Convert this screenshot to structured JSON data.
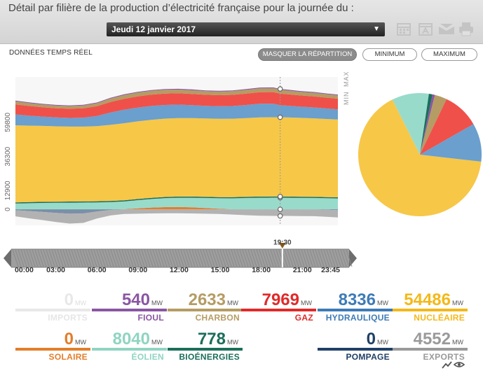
{
  "header": {
    "title": "Détail par filière de la production d’électricité française pour la journée du :",
    "date_value": "Jeudi 12 janvier 2017",
    "icons": [
      "calendar-icon",
      "calendar-day-icon",
      "email-icon",
      "print-icon"
    ]
  },
  "controls": {
    "realtime_label": "DONNÉES TEMPS RÉEL",
    "masquer_label": "MASQUER LA RÉPARTITION",
    "minimum_label": "MINIMUM",
    "maximum_label": "MAXIMUM"
  },
  "chart_data": {
    "type": "area",
    "stacked": true,
    "y_tick_labels": [
      "0",
      "12900",
      "36300",
      "59800"
    ],
    "y_ticks": [
      0,
      12900,
      36300,
      59800
    ],
    "range_labels": [
      "MIN",
      "MAX"
    ],
    "ylim": [
      -11000,
      91000
    ],
    "x": [
      "00:00",
      "01:00",
      "02:00",
      "03:00",
      "04:00",
      "05:00",
      "06:00",
      "07:00",
      "08:00",
      "09:00",
      "10:00",
      "11:00",
      "12:00",
      "13:00",
      "14:00",
      "15:00",
      "16:00",
      "17:00",
      "18:00",
      "19:00",
      "19:30",
      "20:00",
      "21:00",
      "22:00",
      "23:00",
      "23:45"
    ],
    "series": [
      {
        "key": "pompage",
        "color": "#7b8fa8",
        "negative": true,
        "values": [
          600,
          1200,
          1800,
          2500,
          3000,
          2800,
          1500,
          400,
          0,
          0,
          0,
          0,
          0,
          0,
          0,
          0,
          0,
          0,
          0,
          0,
          0,
          0,
          0,
          0,
          300,
          600
        ]
      },
      {
        "key": "exports",
        "color": "#b2b2b2",
        "negative": true,
        "values": [
          4200,
          5000,
          5600,
          6200,
          6800,
          6500,
          4800,
          3800,
          3200,
          3000,
          2800,
          2700,
          2700,
          2800,
          3000,
          3200,
          3600,
          4000,
          4400,
          4500,
          4552,
          4500,
          4600,
          4700,
          4900,
          5000
        ]
      },
      {
        "key": "solaire",
        "color": "#e37d2a",
        "values": [
          0,
          0,
          0,
          0,
          0,
          0,
          0,
          0,
          120,
          700,
          1200,
          1500,
          1600,
          1400,
          900,
          400,
          60,
          0,
          0,
          0,
          0,
          0,
          0,
          0,
          0,
          0
        ]
      },
      {
        "key": "eolien",
        "color": "#99dbcb",
        "values": [
          4000,
          4200,
          4400,
          4500,
          4600,
          4700,
          4800,
          5000,
          5300,
          5600,
          5900,
          6200,
          6400,
          6600,
          6900,
          7200,
          7500,
          7800,
          8000,
          8040,
          8040,
          8000,
          7900,
          7800,
          7600,
          7500
        ]
      },
      {
        "key": "bioenergies",
        "color": "#1b6e5a",
        "values": [
          760,
          760,
          760,
          770,
          770,
          770,
          770,
          775,
          775,
          775,
          778,
          778,
          778,
          778,
          778,
          778,
          778,
          778,
          778,
          778,
          778,
          778,
          778,
          778,
          778,
          778
        ]
      },
      {
        "key": "nucleaire",
        "color": "#f7c748",
        "values": [
          53000,
          52600,
          52200,
          51800,
          51500,
          51400,
          51600,
          52300,
          53000,
          53400,
          53700,
          53900,
          54000,
          54000,
          53900,
          53900,
          54000,
          54200,
          54400,
          54500,
          54486,
          54400,
          54200,
          54000,
          53700,
          53500
        ]
      },
      {
        "key": "hydraulique",
        "color": "#6a9fce",
        "values": [
          7500,
          6900,
          6400,
          6100,
          6000,
          6200,
          7000,
          8500,
          9300,
          9500,
          9500,
          9400,
          9200,
          8900,
          8700,
          8600,
          8700,
          9000,
          9500,
          9300,
          8336,
          8100,
          7700,
          7500,
          7200,
          7000
        ]
      },
      {
        "key": "gaz",
        "color": "#f0504a",
        "values": [
          6900,
          6600,
          6400,
          6300,
          6300,
          6400,
          6700,
          7200,
          7500,
          7700,
          7800,
          7800,
          7800,
          7700,
          7600,
          7600,
          7700,
          7800,
          7900,
          8000,
          7969,
          7900,
          7700,
          7600,
          7400,
          7300
        ]
      },
      {
        "key": "charbon",
        "color": "#b59c64",
        "values": [
          2100,
          2000,
          1900,
          1850,
          1850,
          1900,
          2100,
          2400,
          2550,
          2600,
          2600,
          2600,
          2550,
          2500,
          2450,
          2450,
          2500,
          2550,
          2600,
          2633,
          2633,
          2600,
          2500,
          2450,
          2400,
          2350
        ]
      },
      {
        "key": "fioul",
        "color": "#8a56a3",
        "values": [
          480,
          470,
          460,
          460,
          460,
          460,
          480,
          500,
          520,
          530,
          535,
          535,
          535,
          535,
          530,
          530,
          530,
          535,
          540,
          540,
          540,
          540,
          535,
          530,
          520,
          510
        ]
      }
    ],
    "marker_index": 20
  },
  "timeline": {
    "cursor_label": "19:30",
    "cursor_fraction": 0.8125,
    "ticks": [
      "00:00",
      "03:00",
      "06:00",
      "09:00",
      "12:00",
      "15:00",
      "18:00",
      "21:00",
      "23:45"
    ]
  },
  "pie": {
    "slices": [
      {
        "key": "nucleaire",
        "value": 54486,
        "color": "#f7c748"
      },
      {
        "key": "eolien",
        "value": 8040,
        "color": "#99dbcb"
      },
      {
        "key": "bioenergies",
        "value": 778,
        "color": "#1b6e5a"
      },
      {
        "key": "fioul",
        "value": 540,
        "color": "#8a56a3"
      },
      {
        "key": "charbon",
        "value": 2633,
        "color": "#b59c64"
      },
      {
        "key": "gaz",
        "value": 7969,
        "color": "#f0504a"
      },
      {
        "key": "hydraulique",
        "value": 8336,
        "color": "#6a9fce"
      }
    ]
  },
  "stats": [
    {
      "key": "imports",
      "value": "0",
      "unit": "MW",
      "label": "IMPORTS",
      "color": "#e8e8e8",
      "dim": true
    },
    {
      "key": "fioul",
      "value": "540",
      "unit": "MW",
      "label": "FIOUL",
      "color": "#8a56a3"
    },
    {
      "key": "charbon",
      "value": "2633",
      "unit": "MW",
      "label": "CHARBON",
      "color": "#b59c64"
    },
    {
      "key": "gaz",
      "value": "7969",
      "unit": "MW",
      "label": "GAZ",
      "color": "#e02a2a"
    },
    {
      "key": "hydraulique",
      "value": "8336",
      "unit": "MW",
      "label": "HYDRAULIQUE",
      "color": "#3e7bb6"
    },
    {
      "key": "nucleaire",
      "value": "54486",
      "unit": "MW",
      "label": "NUCLÉAIRE",
      "color": "#f4b818"
    },
    {
      "key": "solaire",
      "value": "0",
      "unit": "MW",
      "label": "SOLAIRE",
      "color": "#e37d2a"
    },
    {
      "key": "eolien",
      "value": "8040",
      "unit": "MW",
      "label": "ÉOLIEN",
      "color": "#8fd4c2"
    },
    {
      "key": "bioenergies",
      "value": "778",
      "unit": "MW",
      "label": "BIOÉNERGIES",
      "color": "#1b6e5a"
    },
    {
      "key": "pompage",
      "value": "0",
      "unit": "MW",
      "label": "POMPAGE",
      "color": "#1f3f66"
    },
    {
      "key": "exports",
      "value": "4552",
      "unit": "MW",
      "label": "EXPORTS",
      "color": "#9a9a9a"
    }
  ]
}
